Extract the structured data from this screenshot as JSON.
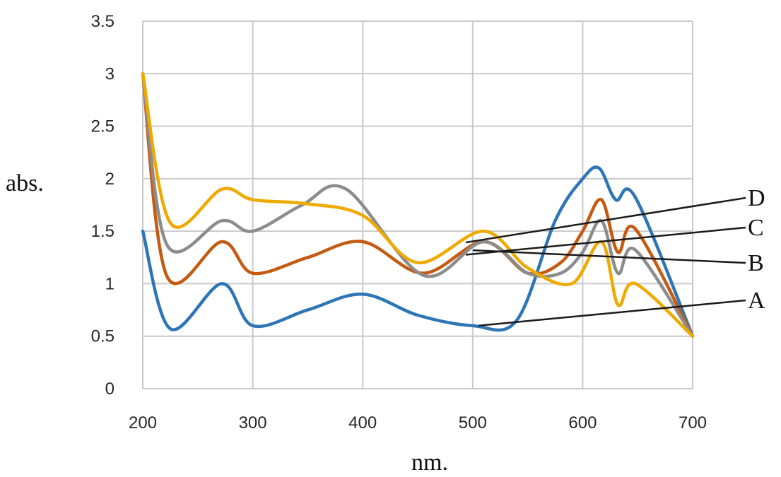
{
  "chart_data": {
    "type": "line",
    "xlabel": "nm.",
    "ylabel": "abs.",
    "xlim": [
      200,
      700
    ],
    "ylim": [
      0,
      3.5
    ],
    "x_ticks": [
      "200",
      "300",
      "400",
      "500",
      "600",
      "700"
    ],
    "y_ticks": [
      "0",
      "0.5",
      "1",
      "1.5",
      "2",
      "2.5",
      "3",
      "3.5"
    ],
    "grid": true,
    "series": [
      {
        "name": "A",
        "color": "#2e75b6",
        "x": [
          200,
          225,
          272,
          300,
          350,
          400,
          450,
          500,
          540,
          575,
          600,
          615,
          630,
          648,
          700
        ],
        "y": [
          1.5,
          0.57,
          1.0,
          0.6,
          0.75,
          0.9,
          0.7,
          0.6,
          0.65,
          1.6,
          2.0,
          2.1,
          1.8,
          1.82,
          0.5
        ]
      },
      {
        "name": "B",
        "color": "#c55a11",
        "x": [
          200,
          222,
          272,
          300,
          350,
          400,
          455,
          510,
          550,
          580,
          600,
          617,
          632,
          648,
          700
        ],
        "y": [
          3.0,
          1.07,
          1.4,
          1.1,
          1.25,
          1.4,
          1.1,
          1.4,
          1.1,
          1.2,
          1.5,
          1.8,
          1.3,
          1.52,
          0.5
        ]
      },
      {
        "name": "C",
        "color": "#8c8c8c",
        "x": [
          200,
          222,
          272,
          300,
          345,
          385,
          455,
          510,
          550,
          580,
          600,
          617,
          632,
          648,
          700
        ],
        "y": [
          3.0,
          1.37,
          1.6,
          1.5,
          1.75,
          1.9,
          1.08,
          1.4,
          1.1,
          1.1,
          1.3,
          1.6,
          1.1,
          1.32,
          0.5
        ]
      },
      {
        "name": "D",
        "color": "#eeaa00",
        "x": [
          200,
          225,
          272,
          300,
          350,
          400,
          450,
          510,
          550,
          590,
          617,
          632,
          648,
          700
        ],
        "y": [
          3.0,
          1.58,
          1.9,
          1.8,
          1.76,
          1.65,
          1.2,
          1.5,
          1.15,
          1.0,
          1.4,
          0.8,
          1.0,
          0.5
        ]
      }
    ],
    "annotations": [
      {
        "label": "D",
        "series": "D"
      },
      {
        "label": "C",
        "series": "C"
      },
      {
        "label": "B",
        "series": "B"
      },
      {
        "label": "A",
        "series": "A"
      }
    ]
  }
}
